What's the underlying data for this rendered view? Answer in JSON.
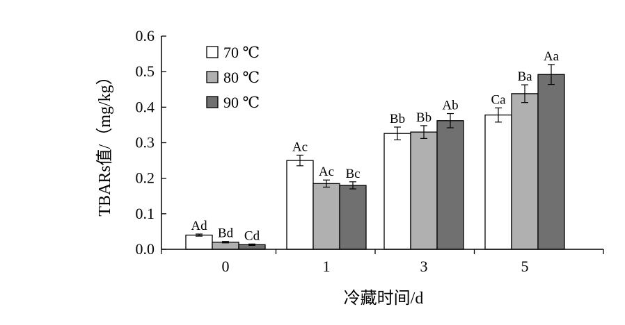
{
  "chart_data": {
    "type": "bar",
    "xlabel": "冷藏时间/d",
    "ylabel": "TBARs值/（mg/kg）",
    "ylim": [
      0,
      0.6
    ],
    "yticks": [
      "0.0",
      "0.1",
      "0.2",
      "0.3",
      "0.4",
      "0.5",
      "0.6"
    ],
    "categories": [
      "0",
      "1",
      "3",
      "5"
    ],
    "legend_position": "top-left",
    "grid": false,
    "series": [
      {
        "name": "70 ℃",
        "color": "#ffffff",
        "values": [
          0.04,
          0.25,
          0.326,
          0.378
        ],
        "errors": [
          0.003,
          0.015,
          0.018,
          0.02
        ],
        "labels": [
          "Ad",
          "Ac",
          "Bb",
          "Ca"
        ]
      },
      {
        "name": "80 ℃",
        "color": "#b0b0b0",
        "values": [
          0.02,
          0.185,
          0.33,
          0.438
        ],
        "errors": [
          0.002,
          0.01,
          0.018,
          0.025
        ],
        "labels": [
          "Bd",
          "Ac",
          "Bb",
          "Ba"
        ]
      },
      {
        "name": "90 ℃",
        "color": "#707070",
        "values": [
          0.013,
          0.18,
          0.362,
          0.492
        ],
        "errors": [
          0.002,
          0.01,
          0.02,
          0.028
        ],
        "labels": [
          "Cd",
          "Bc",
          "Ab",
          "Aa"
        ]
      }
    ]
  }
}
